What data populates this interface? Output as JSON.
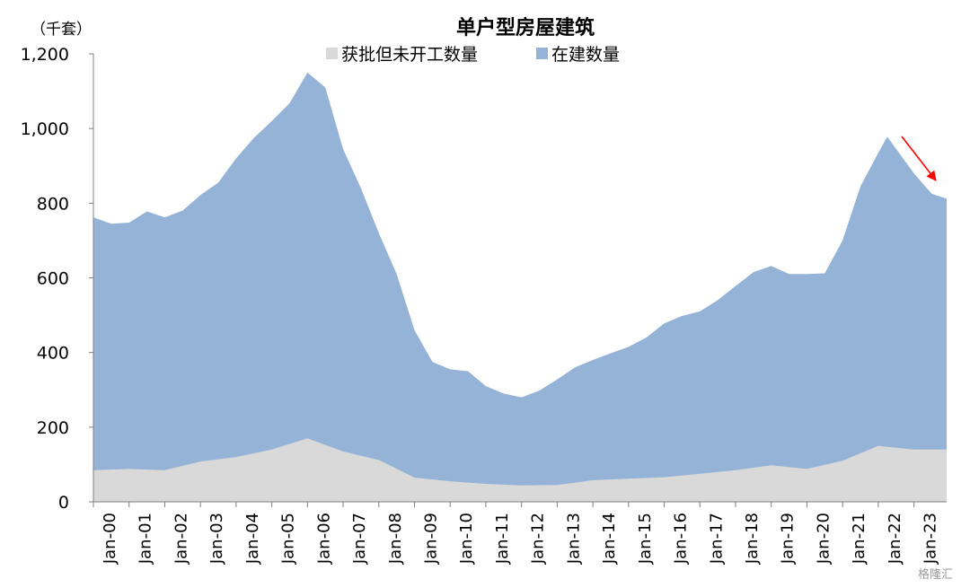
{
  "chart_data": {
    "type": "area",
    "stacked": true,
    "title": "单户型房屋建筑",
    "unit_label": "（千套）",
    "ylim": [
      0,
      1200
    ],
    "yticks": [
      0,
      200,
      400,
      600,
      800,
      1000,
      1200
    ],
    "ytick_labels": [
      "0",
      "200",
      "400",
      "600",
      "800",
      "1,000",
      "1,200"
    ],
    "x_tick_labels": [
      "Jan-00",
      "Jan-01",
      "Jan-02",
      "Jan-03",
      "Jan-04",
      "Jan-05",
      "Jan-06",
      "Jan-07",
      "Jan-08",
      "Jan-09",
      "Jan-10",
      "Jan-11",
      "Jan-12",
      "Jan-13",
      "Jan-14",
      "Jan-15",
      "Jan-16",
      "Jan-17",
      "Jan-18",
      "Jan-19",
      "Jan-20",
      "Jan-21",
      "Jan-22",
      "Jan-23"
    ],
    "x_range": [
      "Jan-00",
      "Dec-23"
    ],
    "legend_position": "top-center",
    "grid": false,
    "series": [
      {
        "name": "获批但未开工数量",
        "color": "#d9d9d9",
        "points": [
          [
            "Jan-00",
            85
          ],
          [
            "Jan-01",
            88
          ],
          [
            "Jan-02",
            85
          ],
          [
            "Jan-03",
            108
          ],
          [
            "Jan-04",
            120
          ],
          [
            "Jan-05",
            140
          ],
          [
            "Jan-06",
            170
          ],
          [
            "Jan-07",
            135
          ],
          [
            "Jan-08",
            112
          ],
          [
            "Jan-09",
            65
          ],
          [
            "Jan-10",
            55
          ],
          [
            "Jan-11",
            48
          ],
          [
            "Jan-12",
            44
          ],
          [
            "Jan-13",
            45
          ],
          [
            "Jan-14",
            58
          ],
          [
            "Jan-15",
            62
          ],
          [
            "Jan-16",
            66
          ],
          [
            "Jan-17",
            75
          ],
          [
            "Jan-18",
            85
          ],
          [
            "Jan-19",
            98
          ],
          [
            "Jan-20",
            88
          ],
          [
            "Jan-21",
            110
          ],
          [
            "Jan-22",
            150
          ],
          [
            "Jan-23",
            140
          ],
          [
            "Dec-23",
            140
          ]
        ]
      },
      {
        "name": "在建数量",
        "color": "#95b3d7",
        "total_points": [
          [
            "Jan-00",
            762
          ],
          [
            "Jul-00",
            745
          ],
          [
            "Jan-01",
            748
          ],
          [
            "Jul-01",
            778
          ],
          [
            "Jan-02",
            762
          ],
          [
            "Jul-02",
            780
          ],
          [
            "Jan-03",
            822
          ],
          [
            "Jul-03",
            855
          ],
          [
            "Jan-04",
            920
          ],
          [
            "Jul-04",
            975
          ],
          [
            "Jan-05",
            1020
          ],
          [
            "Jul-05",
            1068
          ],
          [
            "Jan-06",
            1150
          ],
          [
            "Jul-06",
            1110
          ],
          [
            "Jan-07",
            945
          ],
          [
            "Jul-07",
            840
          ],
          [
            "Jan-08",
            720
          ],
          [
            "Jul-08",
            610
          ],
          [
            "Jan-09",
            460
          ],
          [
            "Jul-09",
            375
          ],
          [
            "Jan-10",
            355
          ],
          [
            "Jul-10",
            350
          ],
          [
            "Jan-11",
            310
          ],
          [
            "Jul-11",
            290
          ],
          [
            "Jan-12",
            280
          ],
          [
            "Jul-12",
            298
          ],
          [
            "Jan-13",
            328
          ],
          [
            "Jul-13",
            360
          ],
          [
            "Jan-14",
            380
          ],
          [
            "Jul-14",
            398
          ],
          [
            "Jan-15",
            415
          ],
          [
            "Jul-15",
            440
          ],
          [
            "Jan-16",
            478
          ],
          [
            "Jul-16",
            498
          ],
          [
            "Jan-17",
            510
          ],
          [
            "Jul-17",
            540
          ],
          [
            "Jan-18",
            578
          ],
          [
            "Jul-18",
            615
          ],
          [
            "Jan-19",
            632
          ],
          [
            "Jul-19",
            610
          ],
          [
            "Jan-20",
            610
          ],
          [
            "Jul-20",
            612
          ],
          [
            "Jan-21",
            700
          ],
          [
            "Jul-21",
            845
          ],
          [
            "Jan-22",
            935
          ],
          [
            "Apr-22",
            978
          ],
          [
            "Jan-23",
            880
          ],
          [
            "Jul-23",
            825
          ],
          [
            "Dec-23",
            812
          ]
        ]
      }
    ],
    "annotation": {
      "type": "arrow",
      "color": "#ff0000",
      "meaning": "downward trend"
    }
  },
  "watermark": "格隆汇"
}
